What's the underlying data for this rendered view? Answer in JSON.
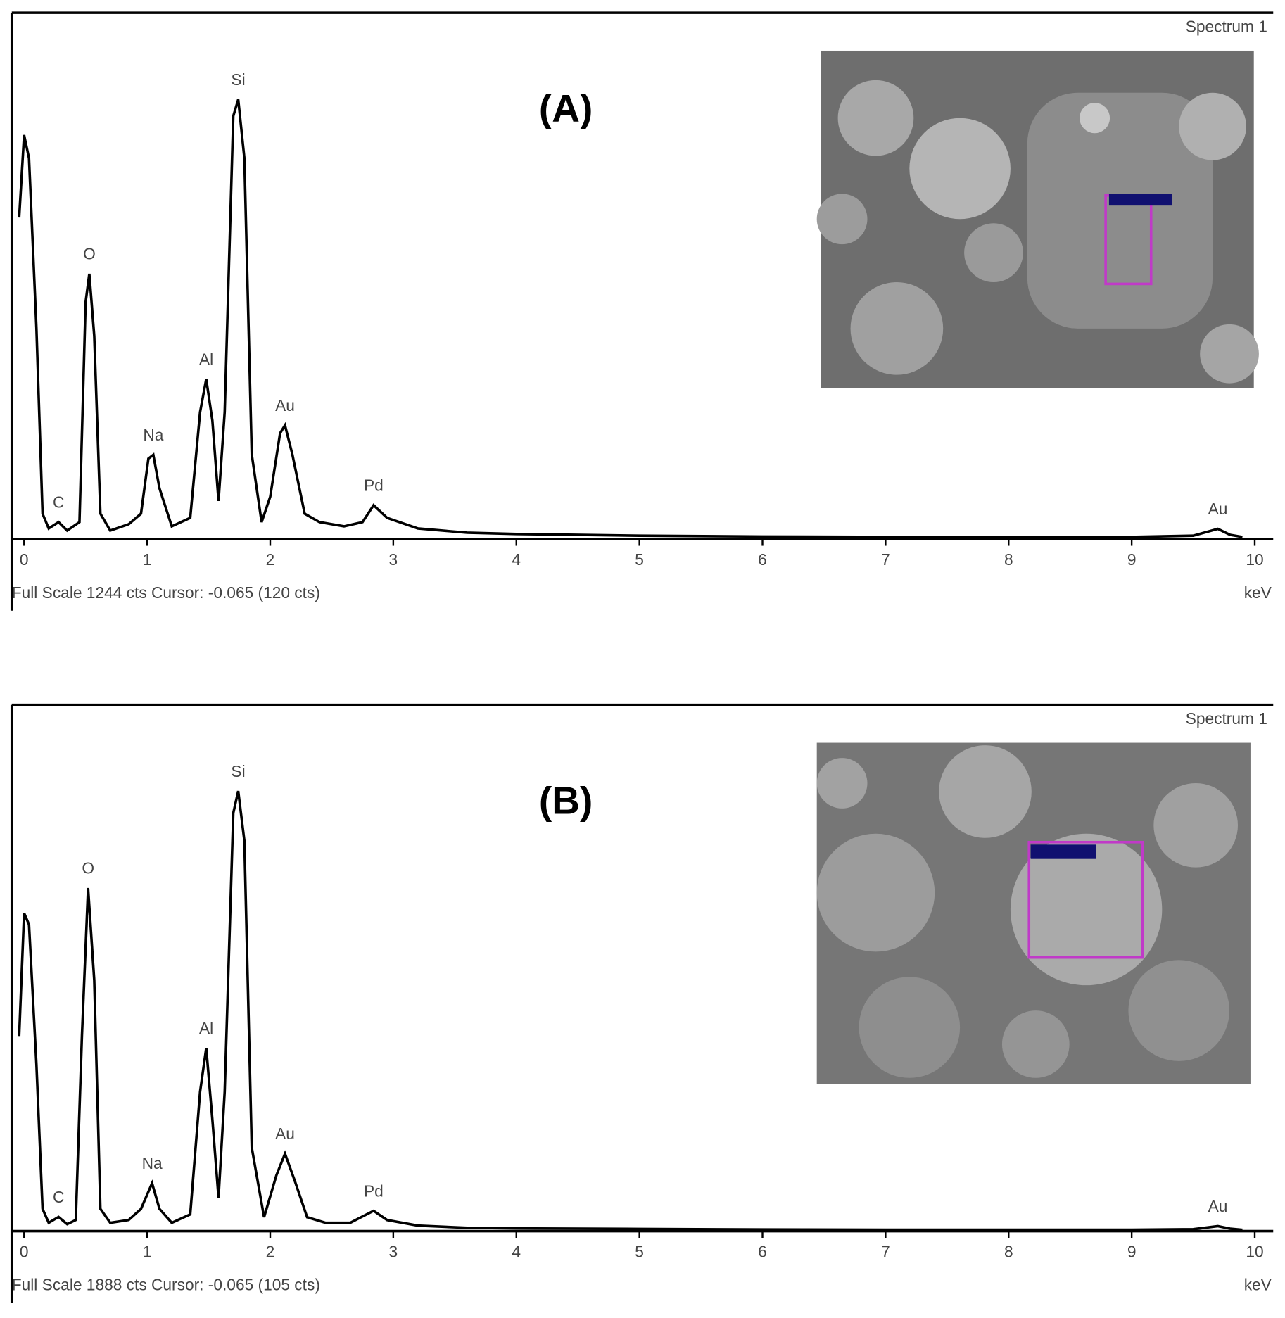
{
  "chart_data": [
    {
      "type": "line",
      "panel_label": "(A)",
      "spectrum_label": "Spectrum 1",
      "footer": "Full Scale 1244 cts Cursor: -0.065  (120 cts)",
      "x_label": "keV",
      "xlim": [
        -0.1,
        10.15
      ],
      "xticks": [
        0,
        1,
        2,
        3,
        4,
        5,
        6,
        7,
        8,
        9,
        10
      ],
      "ylim": [
        0,
        1244
      ],
      "x": [
        -0.04,
        0.0,
        0.04,
        0.1,
        0.15,
        0.2,
        0.28,
        0.35,
        0.45,
        0.5,
        0.53,
        0.57,
        0.62,
        0.7,
        0.85,
        0.95,
        1.01,
        1.05,
        1.1,
        1.2,
        1.35,
        1.43,
        1.48,
        1.53,
        1.58,
        1.63,
        1.7,
        1.74,
        1.79,
        1.85,
        1.93,
        2.0,
        2.08,
        2.12,
        2.18,
        2.28,
        2.4,
        2.6,
        2.75,
        2.84,
        2.95,
        3.2,
        3.6,
        4.0,
        5.0,
        6.0,
        7.0,
        8.0,
        9.0,
        9.5,
        9.7,
        9.8,
        9.9
      ],
      "series": [
        {
          "color": "#000000",
          "values": [
            760,
            955,
            900,
            500,
            60,
            25,
            40,
            20,
            40,
            560,
            627,
            480,
            60,
            20,
            35,
            60,
            190,
            199,
            120,
            30,
            50,
            300,
            378,
            280,
            90,
            300,
            1000,
            1039,
            900,
            200,
            40,
            100,
            250,
            269,
            200,
            60,
            40,
            30,
            40,
            80,
            50,
            25,
            15,
            12,
            8,
            6,
            5,
            5,
            5,
            8,
            24,
            10,
            5
          ]
        }
      ],
      "annotations": [
        {
          "text": "C",
          "x": 0.28
        },
        {
          "text": "O",
          "x": 0.53
        },
        {
          "text": "Na",
          "x": 1.05
        },
        {
          "text": "Al",
          "x": 1.48
        },
        {
          "text": "Si",
          "x": 1.74
        },
        {
          "text": "Au",
          "x": 2.12
        },
        {
          "text": "Pd",
          "x": 2.84
        },
        {
          "text": "Au",
          "x": 9.7
        }
      ]
    },
    {
      "type": "line",
      "panel_label": "(B)",
      "spectrum_label": "Spectrum 1",
      "footer": "Full Scale 1888 cts Cursor: -0.065  (105 cts)",
      "x_label": "keV",
      "xlim": [
        -0.1,
        10.15
      ],
      "xticks": [
        0,
        1,
        2,
        3,
        4,
        5,
        6,
        7,
        8,
        9,
        10
      ],
      "ylim": [
        0,
        1888
      ],
      "x": [
        -0.04,
        0.0,
        0.04,
        0.1,
        0.15,
        0.2,
        0.28,
        0.35,
        0.42,
        0.47,
        0.52,
        0.57,
        0.62,
        0.7,
        0.85,
        0.95,
        1.04,
        1.1,
        1.2,
        1.35,
        1.43,
        1.48,
        1.53,
        1.58,
        1.63,
        1.7,
        1.74,
        1.79,
        1.85,
        1.95,
        2.05,
        2.12,
        2.2,
        2.3,
        2.45,
        2.65,
        2.84,
        2.95,
        3.2,
        3.6,
        4.0,
        5.0,
        6.0,
        7.0,
        8.0,
        9.0,
        9.5,
        9.7,
        9.8,
        9.9
      ],
      "series": [
        {
          "color": "#000000",
          "values": [
            700,
            1141,
            1100,
            600,
            80,
            30,
            51,
            25,
            40,
            700,
            1231,
            900,
            80,
            30,
            40,
            80,
            172,
            80,
            30,
            60,
            500,
            657,
            400,
            120,
            500,
            1500,
            1579,
            1400,
            300,
            50,
            200,
            278,
            180,
            50,
            30,
            30,
            73,
            40,
            20,
            12,
            10,
            8,
            6,
            5,
            5,
            5,
            7,
            18,
            9,
            5
          ]
        }
      ],
      "annotations": [
        {
          "text": "C",
          "x": 0.28
        },
        {
          "text": "O",
          "x": 0.52
        },
        {
          "text": "Na",
          "x": 1.04
        },
        {
          "text": "Al",
          "x": 1.48
        },
        {
          "text": "Si",
          "x": 1.74
        },
        {
          "text": "Au",
          "x": 2.12
        },
        {
          "text": "Pd",
          "x": 2.84
        },
        {
          "text": "Au",
          "x": 9.7
        }
      ]
    }
  ]
}
